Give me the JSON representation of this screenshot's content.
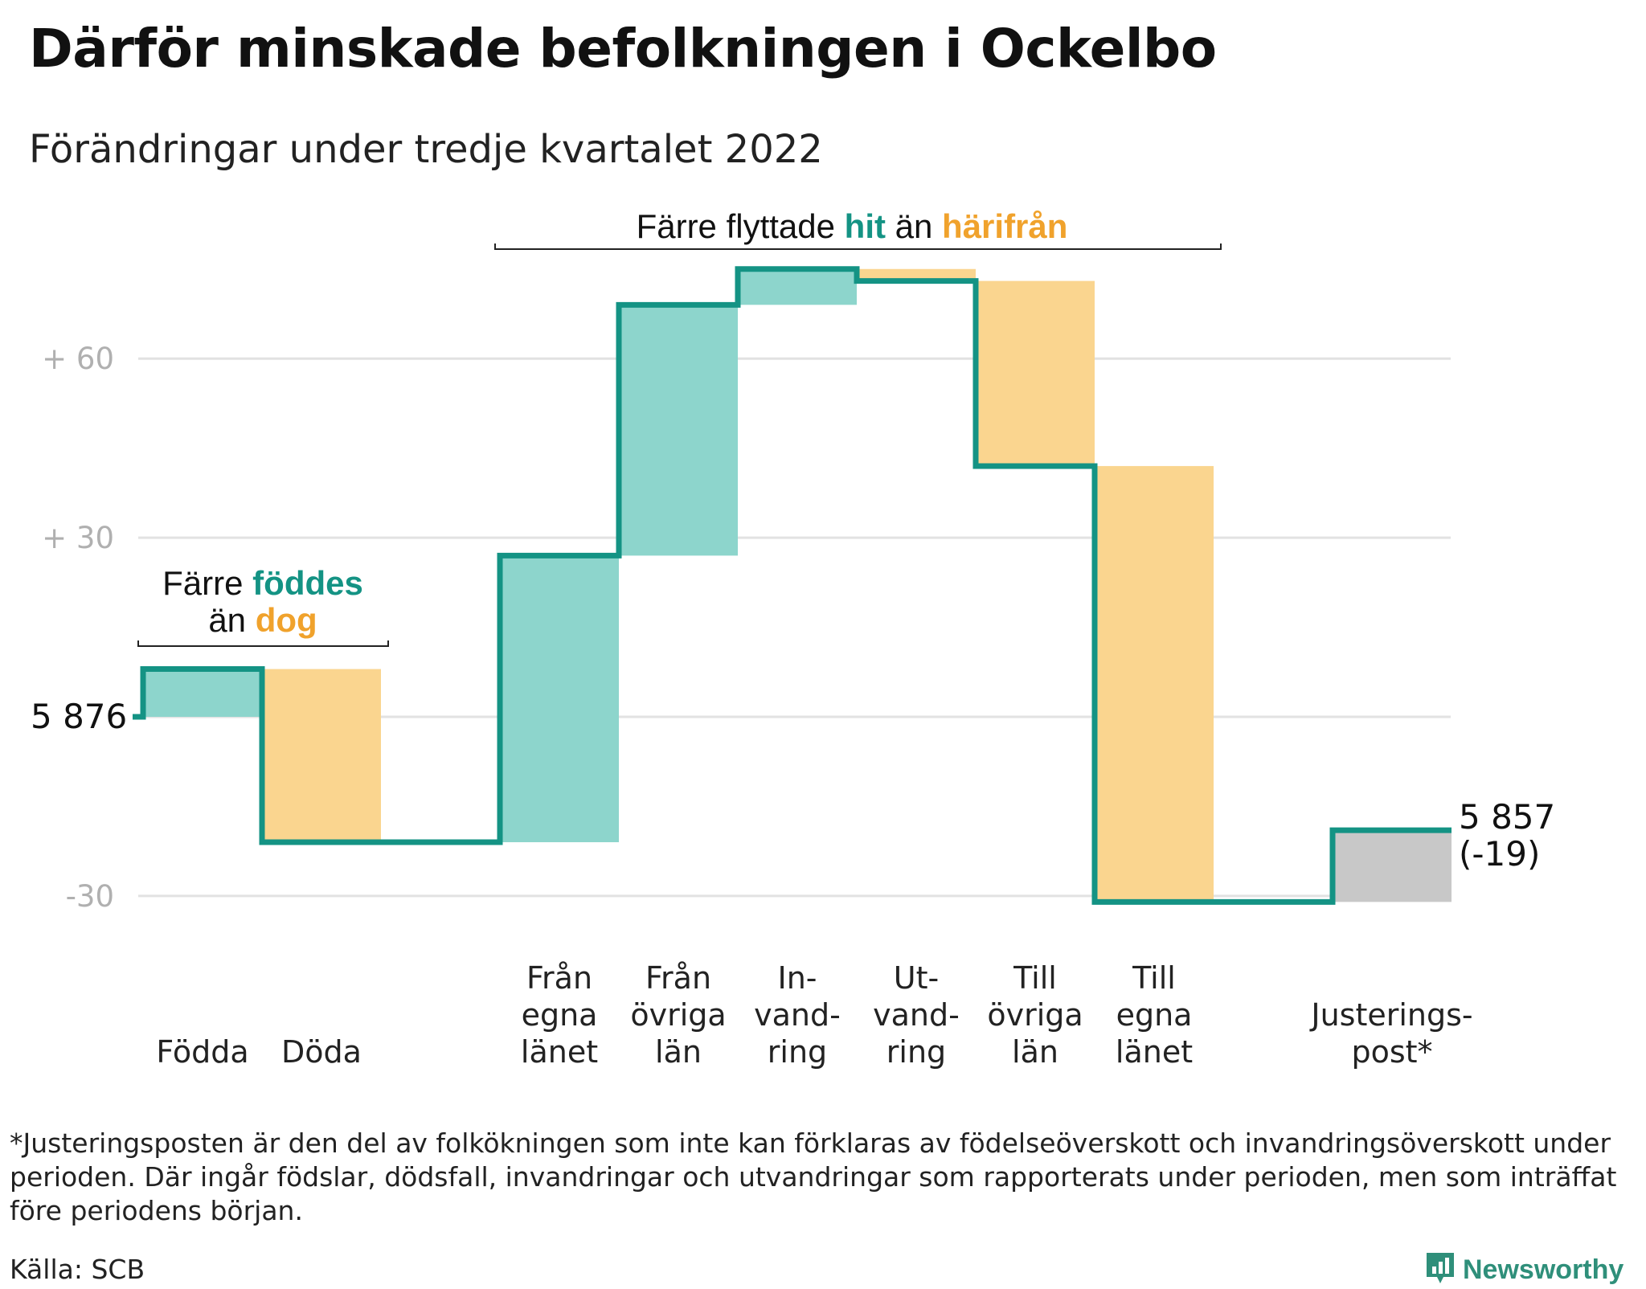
{
  "title": "Därför minskade befolkningen i Ockelbo",
  "subtitle": "Förändringar under tredje kvartalet 2022",
  "colors": {
    "increase": "#8dd5cc",
    "decrease": "#fad58f",
    "adjustment": "#c8c8c8",
    "line": "#149384",
    "highlight_teal": "#149384",
    "highlight_orange": "#f0a22c",
    "grid": "#e2e2e2",
    "tick_text": "#b0b0b0"
  },
  "annotations": {
    "migration": {
      "pre": "Färre flyttade ",
      "in": "hit",
      "mid": " än ",
      "out": "härifrån"
    },
    "births": {
      "line1_pre": "Färre ",
      "line1_hl": "föddes",
      "line2_pre": "än ",
      "line2_hl": "dog"
    }
  },
  "chart_data": {
    "type": "waterfall",
    "start_value": 5876,
    "start_label": "5 876",
    "end_value": 5857,
    "end_label": "5 857",
    "end_change_label": "(-19)",
    "y_axis": {
      "range": [
        -38,
        80
      ],
      "ticks": [
        {
          "value": 60,
          "label": "+ 60"
        },
        {
          "value": 30,
          "label": "+ 30"
        },
        {
          "value": 0,
          "label": ""
        },
        {
          "value": -30,
          "label": "-30"
        }
      ],
      "grid": true
    },
    "steps": [
      {
        "lines": [
          "Födda"
        ],
        "change": 8,
        "kind": "increase"
      },
      {
        "lines": [
          "Döda"
        ],
        "change": -29,
        "kind": "decrease"
      },
      {
        "lines": [],
        "change": 0,
        "kind": "gap"
      },
      {
        "lines": [
          "Från",
          "egna",
          "länet"
        ],
        "change": 48,
        "kind": "increase"
      },
      {
        "lines": [
          "Från",
          "övriga",
          "län"
        ],
        "change": 42,
        "kind": "increase"
      },
      {
        "lines": [
          "In-",
          "vand-",
          "ring"
        ],
        "change": 6,
        "kind": "increase"
      },
      {
        "lines": [
          "Ut-",
          "vand-",
          "ring"
        ],
        "change": -2,
        "kind": "decrease"
      },
      {
        "lines": [
          "Till",
          "övriga",
          "län"
        ],
        "change": -31,
        "kind": "decrease"
      },
      {
        "lines": [
          "Till",
          "egna",
          "länet"
        ],
        "change": -73,
        "kind": "decrease"
      },
      {
        "lines": [],
        "change": 0,
        "kind": "gap"
      },
      {
        "lines": [
          "Justerings-",
          "post*"
        ],
        "change": 12,
        "kind": "adjustment"
      }
    ]
  },
  "footnote": "*Justeringsposten är den del av folkökningen som inte kan förklaras av födelseöverskott och invandringsöverskott under perioden. Där ingår födslar, dödsfall, invandringar och utvandringar som rapporterats under perioden, men som inträffat före periodens början.",
  "source": "Källa: SCB",
  "brand": {
    "name": "Newsworthy",
    "icon": "newsworthy-logo-icon"
  }
}
